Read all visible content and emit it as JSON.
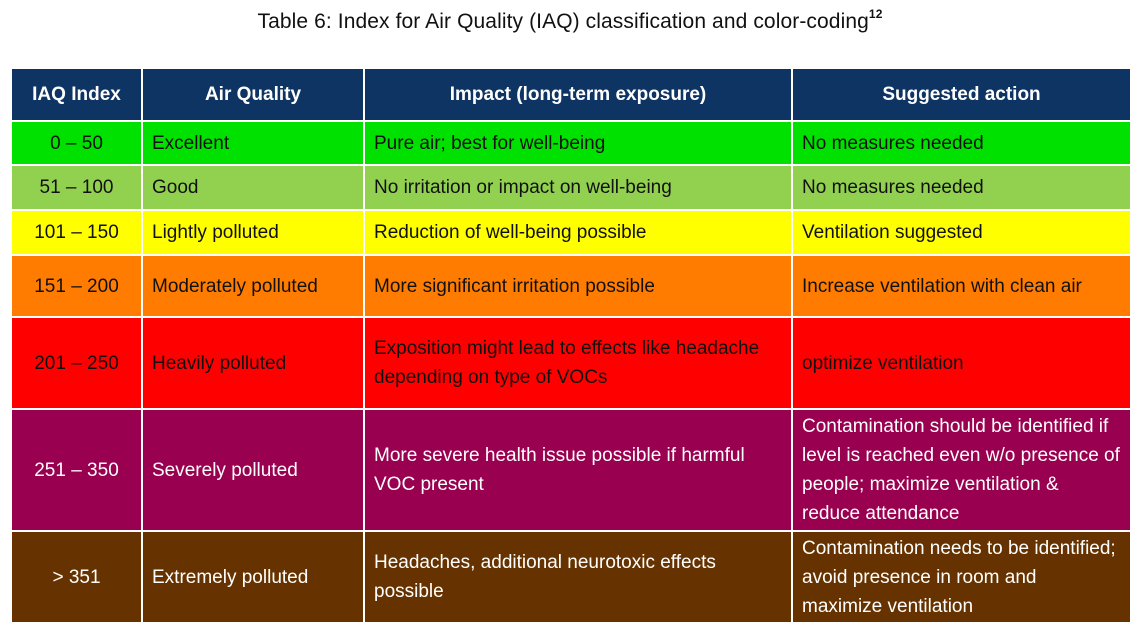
{
  "caption": {
    "text": "Table 6: Index for Air Quality (IAQ) classification and color-coding",
    "footnote": "12"
  },
  "table": {
    "headers": [
      "IAQ Index",
      "Air Quality",
      "Impact (long-term exposure)",
      "Suggested action"
    ],
    "rows": [
      {
        "index": "0 – 50",
        "quality": "Excellent",
        "impact": "Pure air; best for well-being",
        "action": "No measures needed",
        "color": "#00e100"
      },
      {
        "index": "51 – 100",
        "quality": "Good",
        "impact": "No irritation or impact on well-being",
        "action": "No measures needed",
        "color": "#92d050"
      },
      {
        "index": "101 – 150",
        "quality": "Lightly polluted",
        "impact": "Reduction of well-being possible",
        "action": "Ventilation suggested",
        "color": "#ffff00"
      },
      {
        "index": "151 – 200",
        "quality": "Moderately polluted",
        "impact": "More significant irritation possible",
        "action": "Increase ventilation with clean air",
        "color": "#ff7c00"
      },
      {
        "index": "201 – 250",
        "quality": "Heavily polluted",
        "impact": "Exposition might lead to effects like headache depending on type of VOCs",
        "action": "optimize ventilation",
        "color": "#ff0000"
      },
      {
        "index": "251 – 350",
        "quality": "Severely polluted",
        "impact": "More severe health issue possible if harmful VOC present",
        "action": "Contamination should be identified if level is reached even w/o presence of people; maximize ventilation & reduce attendance",
        "color": "#990050"
      },
      {
        "index": "> 351",
        "quality": "Extremely polluted",
        "impact": "Headaches, additional neurotoxic effects possible",
        "action": "Contamination needs to be identified; avoid presence in room and maximize ventilation",
        "color": "#663300"
      }
    ]
  }
}
